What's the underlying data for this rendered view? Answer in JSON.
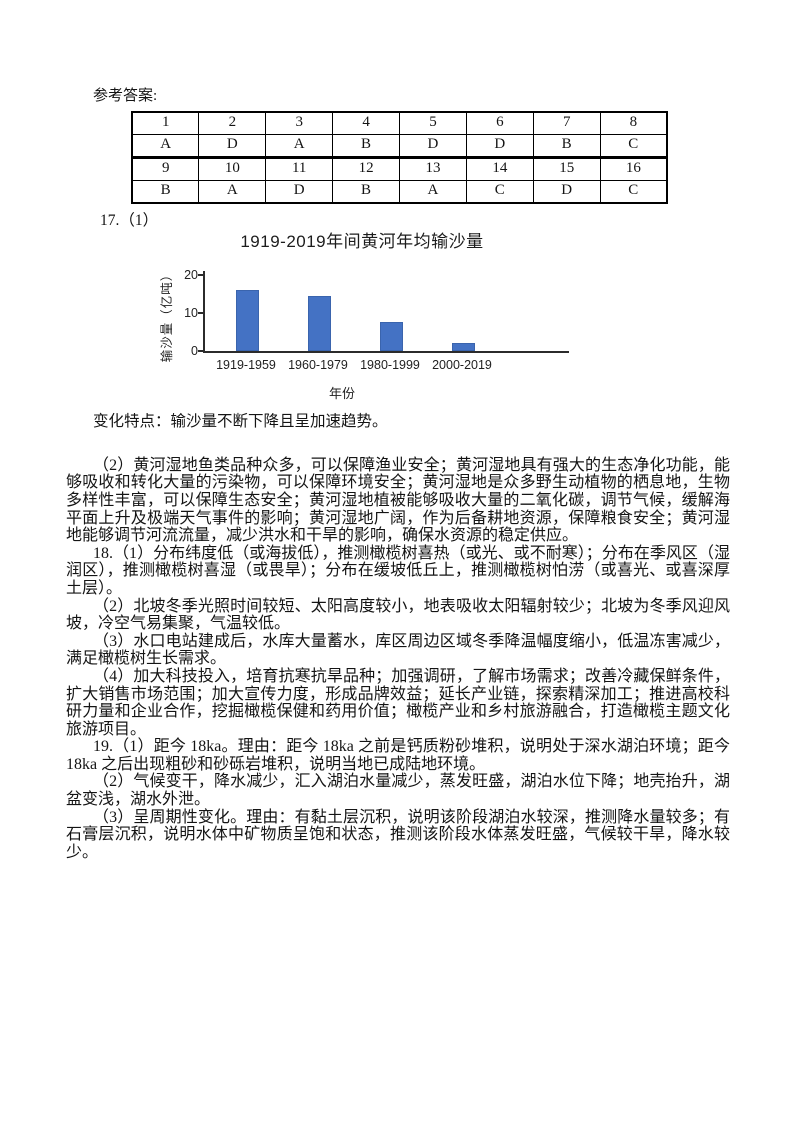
{
  "header": {
    "title": "参考答案:"
  },
  "answer_table": {
    "rows": [
      [
        "1",
        "2",
        "3",
        "4",
        "5",
        "6",
        "7",
        "8"
      ],
      [
        "A",
        "D",
        "A",
        "B",
        "D",
        "D",
        "B",
        "C"
      ],
      [
        "9",
        "10",
        "11",
        "12",
        "13",
        "14",
        "15",
        "16"
      ],
      [
        "B",
        "A",
        "D",
        "B",
        "A",
        "C",
        "D",
        "C"
      ]
    ]
  },
  "q17": {
    "label": "17.（1）",
    "change_note": "变化特点：输沙量不断下降且呈加速趋势。",
    "para2": "（2）黄河湿地鱼类品种众多，可以保障渔业安全；黄河湿地具有强大的生态净化功能，能够吸收和转化大量的污染物，可以保障环境安全；黄河湿地是众多野生动植物的栖息地，生物多样性丰富，可以保障生态安全；黄河湿地植被能够吸收大量的二氧化碳，调节气候，缓解海平面上升及极端天气事件的影响；黄河湿地广阔，作为后备耕地资源，保障粮食安全；黄河湿地能够调节河流流量，减少洪水和干旱的影响，确保水资源的稳定供应。"
  },
  "chart_data": {
    "type": "bar",
    "title": "1919-2019年间黄河年均输沙量",
    "categories": [
      "1919-1959",
      "1960-1979",
      "1980-1999",
      "2000-2019"
    ],
    "values": [
      16,
      14.5,
      7.8,
      2.2
    ],
    "xlabel": "年份",
    "ylabel": "输沙量（亿吨）",
    "yticks": [
      0,
      10,
      20
    ],
    "ylim": [
      0,
      20
    ],
    "bar_color": "#4472C4",
    "grid": false,
    "legend": false
  },
  "q18": {
    "para1": "18.（1）分布纬度低（或海拔低），推测橄榄树喜热（或光、或不耐寒）；分布在季风区（湿润区），推测橄榄树喜湿（或畏旱）；分布在缓坡低丘上，推测橄榄树怕涝（或喜光、或喜深厚土层）。",
    "para2": "（2）北坡冬季光照时间较短、太阳高度较小，地表吸收太阳辐射较少；北坡为冬季风迎风坡，冷空气易集聚，气温较低。",
    "para3": "（3）水口电站建成后，水库大量蓄水，库区周边区域冬季降温幅度缩小，低温冻害减少，满足橄榄树生长需求。",
    "para4": "（4）加大科技投入，培育抗寒抗旱品种；加强调研，了解市场需求；改善冷藏保鲜条件，扩大销售市场范围；加大宣传力度，形成品牌效益；延长产业链，探索精深加工；推进高校科研力量和企业合作，挖掘橄榄保健和药用价值；橄榄产业和乡村旅游融合，打造橄榄主题文化旅游项目。"
  },
  "q19": {
    "para1": "19.（1）距今 18ka。理由：距今 18ka 之前是钙质粉砂堆积，说明处于深水湖泊环境；距今 18ka 之后出现粗砂和砂砾岩堆积，说明当地已成陆地环境。",
    "para2": "（2）气候变干，降水减少，汇入湖泊水量减少，蒸发旺盛，湖泊水位下降；地壳抬升，湖盆变浅，湖水外泄。",
    "para3": "（3）呈周期性变化。理由：有黏土层沉积，说明该阶段湖泊水较深，推测降水量较多；有石膏层沉积，说明水体中矿物质呈饱和状态，推测该阶段水体蒸发旺盛，气候较干旱，降水较少。"
  }
}
